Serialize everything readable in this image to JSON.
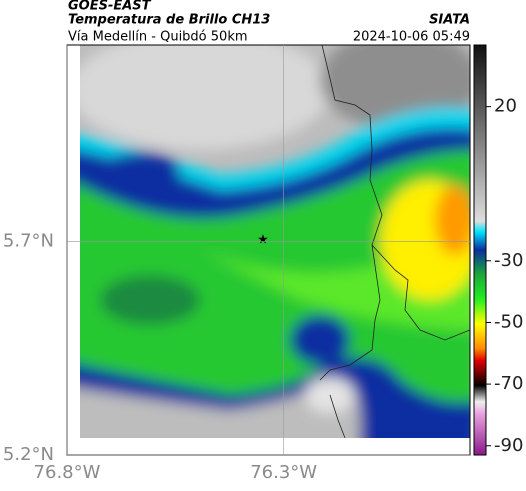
{
  "header": {
    "satellite": "GOES-EAST",
    "product": "Temperatura de Brillo CH13",
    "source": "SIATA",
    "route": "Vía Medellín - Quibdó 50km",
    "timestamp": "2024-10-06 05:49"
  },
  "map": {
    "xlim": [
      -76.8,
      -75.87
    ],
    "ylim": [
      5.2,
      6.16
    ],
    "xticks": [
      {
        "value": -76.8,
        "label": "76.8°W"
      },
      {
        "value": -76.3,
        "label": "76.3°W"
      }
    ],
    "yticks": [
      {
        "value": 5.2,
        "label": "5.2°N"
      },
      {
        "value": 5.7,
        "label": "5.7°N"
      }
    ],
    "grid": true
  },
  "colorbar": {
    "lim": [
      -93,
      40
    ],
    "ticks": [
      20,
      -30,
      -50,
      -70,
      -90
    ]
  }
}
